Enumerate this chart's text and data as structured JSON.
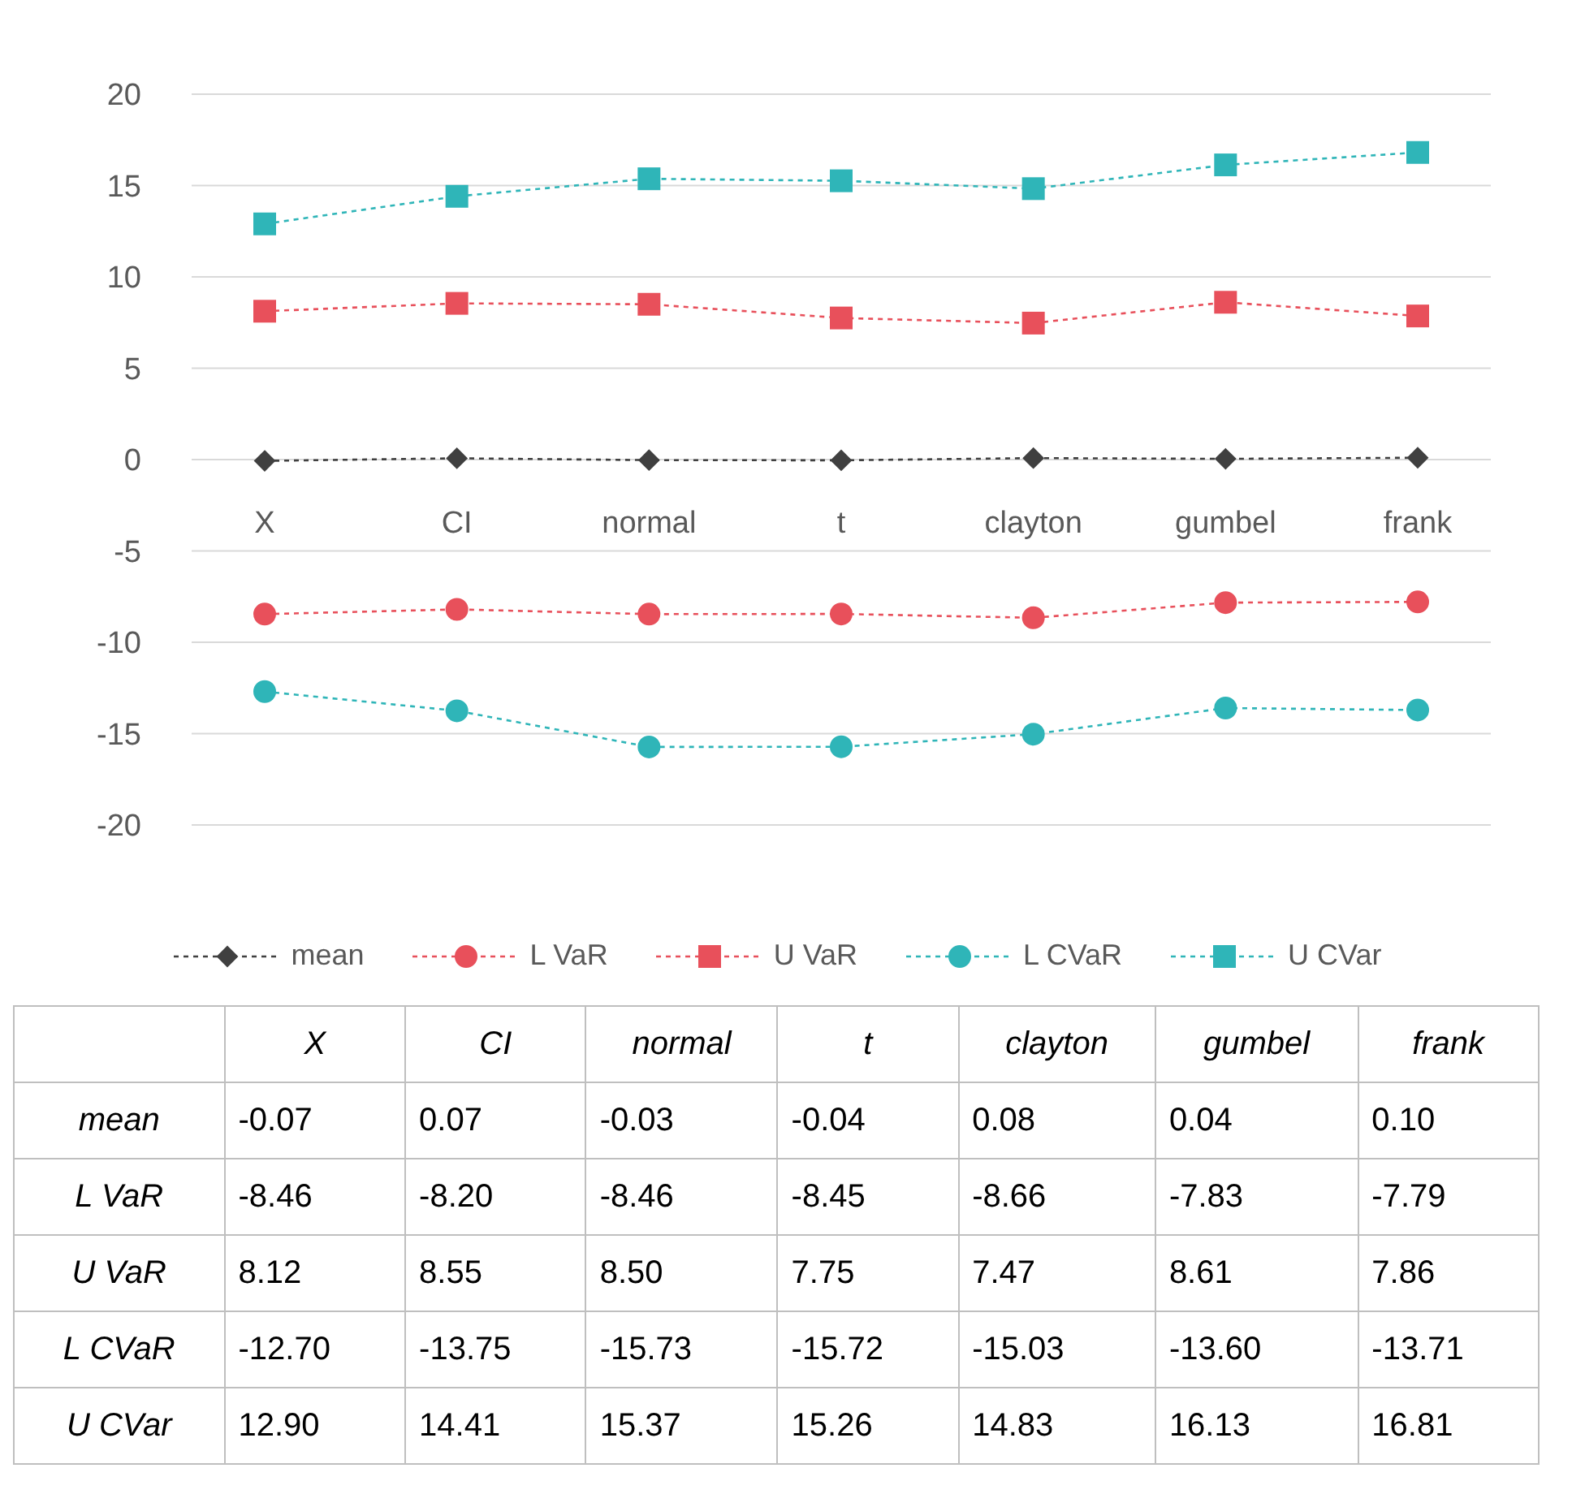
{
  "chart_data": {
    "type": "line",
    "categories": [
      "X",
      "CI",
      "normal",
      "t",
      "clayton",
      "gumbel",
      "frank"
    ],
    "series": [
      {
        "name": "mean",
        "color": "#404040",
        "marker": "diamond",
        "values": [
          -0.07,
          0.07,
          -0.03,
          -0.04,
          0.08,
          0.04,
          0.1
        ],
        "value_labels": [
          "-0.07",
          "0.07",
          "-0.03",
          "-0.04",
          "0.08",
          "0.04",
          "0.10"
        ]
      },
      {
        "name": "L VaR",
        "color": "#e8505b",
        "marker": "circle",
        "values": [
          -8.46,
          -8.2,
          -8.46,
          -8.45,
          -8.66,
          -7.83,
          -7.79
        ],
        "value_labels": [
          "-8.46",
          "-8.20",
          "-8.46",
          "-8.45",
          "-8.66",
          "-7.83",
          "-7.79"
        ]
      },
      {
        "name": "U VaR",
        "color": "#e8505b",
        "marker": "square",
        "values": [
          8.12,
          8.55,
          8.5,
          7.75,
          7.47,
          8.61,
          7.86
        ],
        "value_labels": [
          "8.12",
          "8.55",
          "8.50",
          "7.75",
          "7.47",
          "8.61",
          "7.86"
        ]
      },
      {
        "name": "L CVaR",
        "color": "#2fb5b8",
        "marker": "circle",
        "values": [
          -12.7,
          -13.75,
          -15.73,
          -15.72,
          -15.03,
          -13.6,
          -13.71
        ],
        "value_labels": [
          "-12.70",
          "-13.75",
          "-15.73",
          "-15.72",
          "-15.03",
          "-13.60",
          "-13.71"
        ]
      },
      {
        "name": "U CVar",
        "color": "#2fb5b8",
        "marker": "square",
        "values": [
          12.9,
          14.41,
          15.37,
          15.26,
          14.83,
          16.13,
          16.81
        ],
        "value_labels": [
          "12.90",
          "14.41",
          "15.37",
          "15.26",
          "14.83",
          "16.13",
          "16.81"
        ]
      }
    ],
    "ylim": [
      -20,
      20
    ],
    "yticks": [
      -20,
      -15,
      -10,
      -5,
      0,
      5,
      10,
      15,
      20
    ],
    "grid": "y",
    "legend": "bottom",
    "line_style": "dashed"
  }
}
